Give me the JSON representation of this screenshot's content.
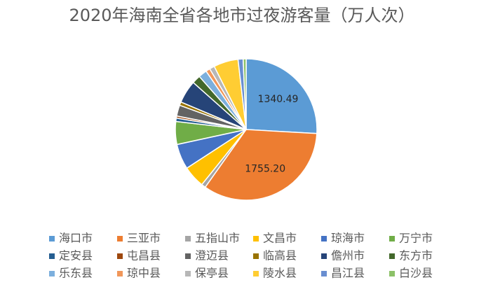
{
  "chart_data": {
    "type": "pie",
    "title": "2020年海南全省各地市过夜游客量（万人次）",
    "categories": [
      "海口市",
      "三亚市",
      "五指山市",
      "文昌市",
      "琼海市",
      "万宁市",
      "定安县",
      "屯昌县",
      "澄迈县",
      "临高县",
      "儋州市",
      "东方市",
      "乐东县",
      "琼中县",
      "保亭县",
      "陵水县",
      "昌江县",
      "白沙县"
    ],
    "values": [
      1340.49,
      1755.2,
      50,
      260,
      300,
      270,
      40,
      25,
      130,
      40,
      270,
      100,
      100,
      50,
      60,
      290,
      60,
      35
    ],
    "value_labels": [
      "1340.49",
      "1755.20",
      null,
      null,
      null,
      null,
      null,
      null,
      null,
      null,
      null,
      null,
      null,
      null,
      null,
      null,
      null,
      null
    ],
    "colors": [
      "#5b9bd5",
      "#ed7d31",
      "#a5a5a5",
      "#ffc000",
      "#4472c4",
      "#70ad47",
      "#255e91",
      "#9e480e",
      "#636363",
      "#997300",
      "#264478",
      "#43682b",
      "#7cafdd",
      "#f1975a",
      "#b7b7b7",
      "#ffcd33",
      "#698ed0",
      "#8cc168"
    ],
    "legend": "bottom"
  }
}
